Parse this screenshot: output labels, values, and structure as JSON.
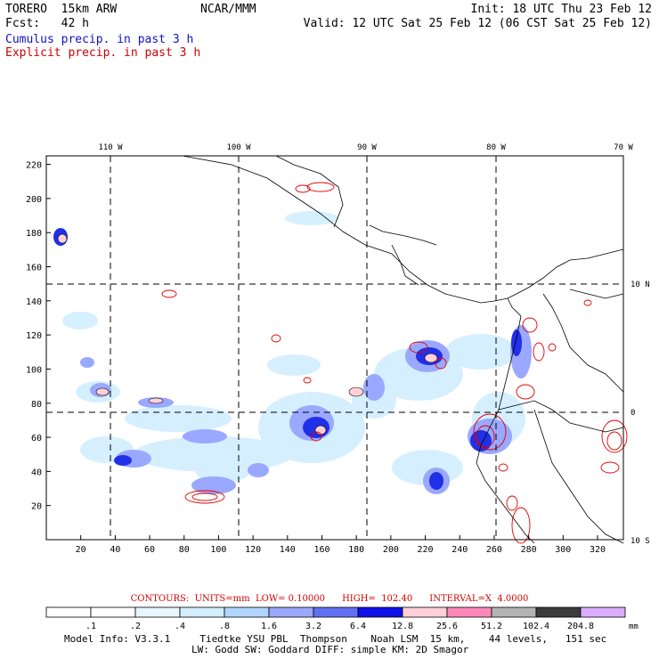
{
  "header": {
    "model": "TORERO  15km ARW",
    "org": "NCAR/MMM",
    "init": "Init: 18 UTC Thu 23 Feb 12",
    "fcst": "Fcst:   42 h",
    "valid": "Valid: 12 UTC Sat 25 Feb 12 (06 CST Sat 25 Feb 12)",
    "field1": "Cumulus precip. in past 3 h",
    "field2": "Explicit precip. in past 3 h"
  },
  "map": {
    "lon_labels": [
      "110 W",
      "100 W",
      "90 W",
      "80 W",
      "70 W"
    ],
    "lat_labels": [
      "10 N",
      "0",
      "10 S"
    ],
    "x_ticks": [
      "20",
      "40",
      "60",
      "80",
      "100",
      "120",
      "140",
      "160",
      "180",
      "200",
      "220",
      "240",
      "260",
      "280",
      "300",
      "320"
    ],
    "y_ticks": [
      "20",
      "40",
      "60",
      "80",
      "100",
      "120",
      "140",
      "160",
      "180",
      "200",
      "220"
    ],
    "x_range": [
      0,
      335
    ],
    "y_range": [
      0,
      225
    ]
  },
  "contours": {
    "text": "CONTOURS:  UNITS=mm  LOW= 0.10000      HIGH=  102.40      INTERVAL=X  4.0000"
  },
  "colorbar": {
    "labels": [
      ".1",
      ".2",
      ".4",
      ".8",
      "1.6",
      "3.2",
      "6.4",
      "12.8",
      "25.6",
      "51.2",
      "102.4",
      "204.8"
    ],
    "unit": "mm",
    "colors": [
      "#ffffff",
      "#ffffff",
      "#e8f6ff",
      "#d2eeff",
      "#b2d6ff",
      "#9aa8ff",
      "#6270f2",
      "#1010e8",
      "#ffd0d8",
      "#ff88b8",
      "#b4b4b4",
      "#3c3c3c",
      "#dcacff"
    ]
  },
  "footer": {
    "line1": "Model Info: V3.3.1     Tiedtke YSU PBL  Thompson    Noah LSM  15 km,    44 levels,   151 sec",
    "line2": "LW: Godd SW: Goddard DIFF: simple KM: 2D Smagor"
  }
}
